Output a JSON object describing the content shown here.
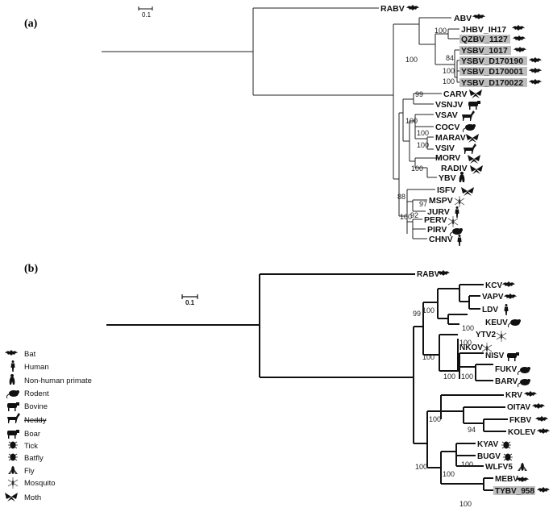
{
  "panel_a": {
    "label": "(a)",
    "scale": "0.1",
    "taxa": [
      "RABV",
      "ABV",
      "JHBV_IH17",
      "QZBV_1127",
      "YSBV_1017",
      "YSBV_D170190",
      "YSBV_D170001",
      "YSBV_D170022",
      "CARV",
      "VSNJV",
      "VSAV",
      "COCV",
      "MARAV",
      "VSIV",
      "MORV",
      "RADIV",
      "YBV",
      "ISFV",
      "MSPV",
      "JURV",
      "PERV",
      "PIRV",
      "CHNV"
    ],
    "bootstrap": [
      "100",
      "100",
      "84",
      "100",
      "100",
      "99",
      "100",
      "100",
      "100",
      "100",
      "88",
      "97",
      "100",
      "92"
    ]
  },
  "panel_b": {
    "label": "(b)",
    "scale": "0.1",
    "taxa": [
      "RABV",
      "KCV",
      "VAPV",
      "LDV",
      "KEUV",
      "YTV2",
      "NKOV",
      "NISV",
      "FUKV",
      "BARV",
      "KRV",
      "OITAV",
      "FKBV",
      "KOLEV",
      "KYAV",
      "BUGV",
      "WLFV5",
      "MEBV",
      "TYBV_958"
    ],
    "bootstrap": [
      "99",
      "100",
      "100",
      "100",
      "100",
      "100",
      "100",
      "100",
      "94",
      "100",
      "100",
      "100",
      "100"
    ]
  },
  "legend": [
    "Bat",
    "Human",
    "Non-human primate",
    "Rodent",
    "Bovine",
    "Neddy",
    "Boar",
    "Tick",
    "Batfly",
    "Fly",
    "Mosquito",
    "Moth"
  ]
}
